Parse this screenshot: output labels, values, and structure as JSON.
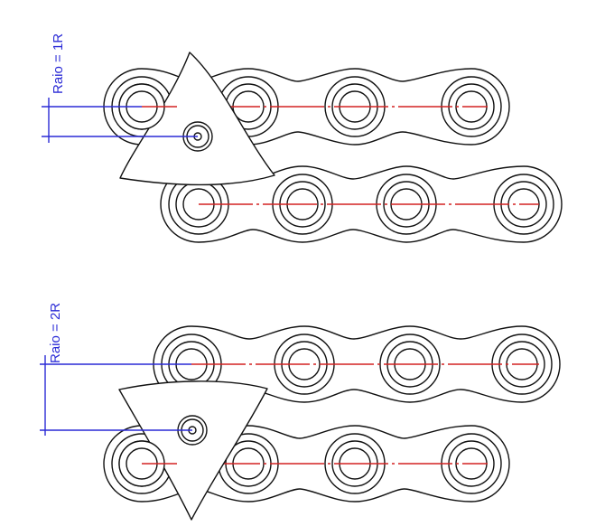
{
  "figures": [
    {
      "dimension_label": "Raio = 1R"
    },
    {
      "dimension_label": "Raio = 2R"
    }
  ],
  "colors": {
    "outline": "#111111",
    "center_line": "#d32222",
    "dimension": "#2a2ad6"
  }
}
